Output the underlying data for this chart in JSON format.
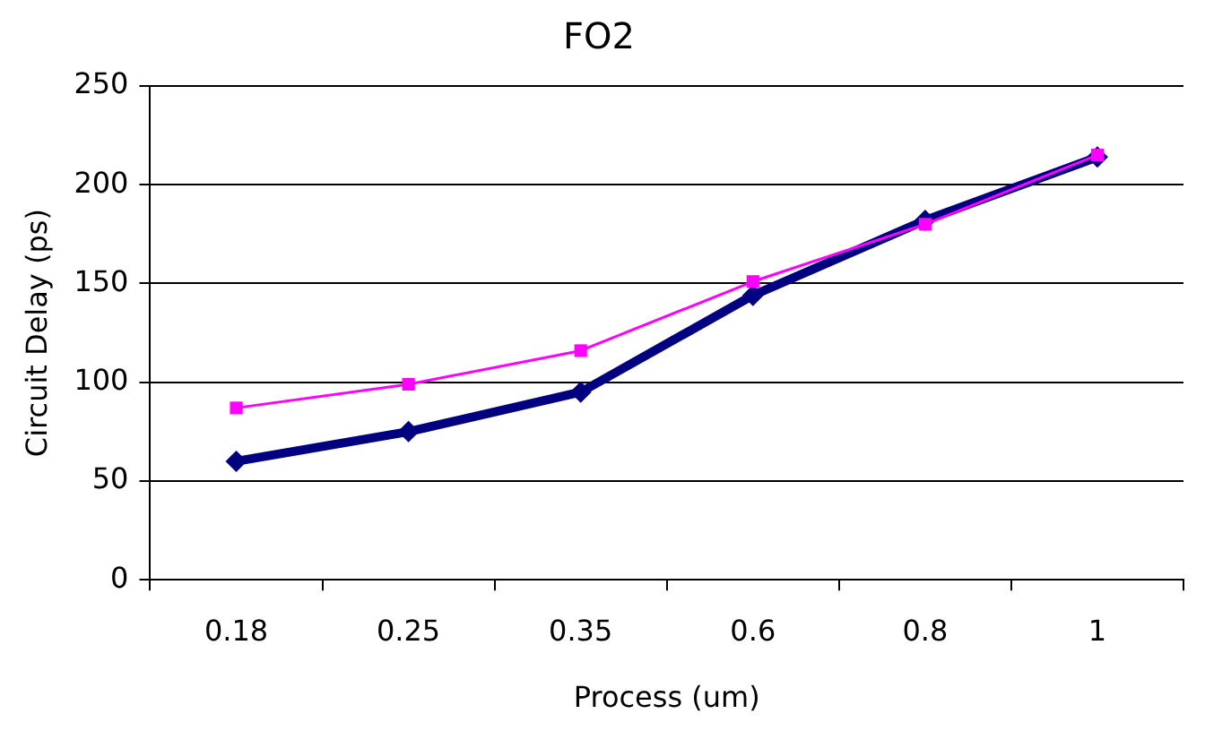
{
  "chart_data": {
    "type": "line",
    "title": "FO2",
    "xlabel": "Process (um)",
    "ylabel": "Circuit Delay (ps)",
    "categories": [
      "0.18",
      "0.25",
      "0.35",
      "0.6",
      "0.8",
      "1"
    ],
    "series": [
      {
        "color": "#000080",
        "values": [
          60,
          75,
          95,
          144,
          182,
          214
        ],
        "marker": "diamond"
      },
      {
        "color": "#ff00ff",
        "values": [
          87,
          99,
          116,
          151,
          180,
          215
        ],
        "marker": "square"
      }
    ],
    "ylim": [
      0,
      250
    ],
    "yticks": [
      0,
      50,
      100,
      150,
      200,
      250
    ],
    "grid": "y",
    "legend": false
  }
}
